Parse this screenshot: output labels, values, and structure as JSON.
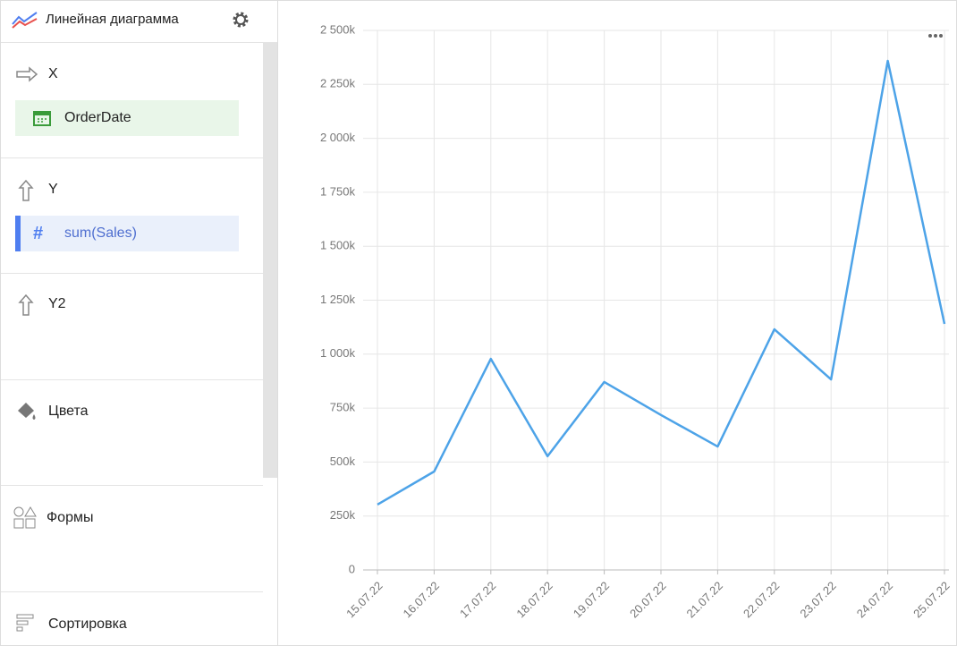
{
  "header": {
    "title": "Линейная диаграмма"
  },
  "sections": [
    {
      "label": "X",
      "fields": [
        "OrderDate"
      ]
    },
    {
      "label": "Y",
      "fields": [
        "sum(Sales)"
      ]
    },
    {
      "label": "Y2"
    },
    {
      "label": "Цвета"
    },
    {
      "label": "Формы"
    },
    {
      "label": "Сортировка"
    }
  ],
  "chart_data": {
    "type": "line",
    "categories": [
      "15.07.22",
      "16.07.22",
      "17.07.22",
      "18.07.22",
      "19.07.22",
      "20.07.22",
      "21.07.22",
      "22.07.22",
      "23.07.22",
      "24.07.22",
      "25.07.22"
    ],
    "values": [
      303000,
      456000,
      978000,
      527000,
      871000,
      718000,
      572000,
      1115000,
      883000,
      2359000,
      1140000
    ],
    "color": "#4da3e8",
    "ylim": [
      0,
      2500000
    ],
    "yticks": [
      0,
      {
        "value": 250000,
        "label": "250k"
      },
      {
        "value": 500000,
        "label": "500k"
      },
      {
        "value": 750000,
        "label": "750k"
      },
      {
        "value": 1000000,
        "label": "1 000k"
      },
      {
        "value": 1250000,
        "label": "1 250k"
      },
      {
        "value": 1500000,
        "label": "1 500k"
      },
      {
        "value": 1750000,
        "label": "1 750k"
      },
      {
        "value": 2000000,
        "label": "2 000k"
      },
      {
        "value": 2250000,
        "label": "2 250k"
      },
      {
        "value": 2500000,
        "label": "2 500k"
      }
    ],
    "grid": true
  }
}
